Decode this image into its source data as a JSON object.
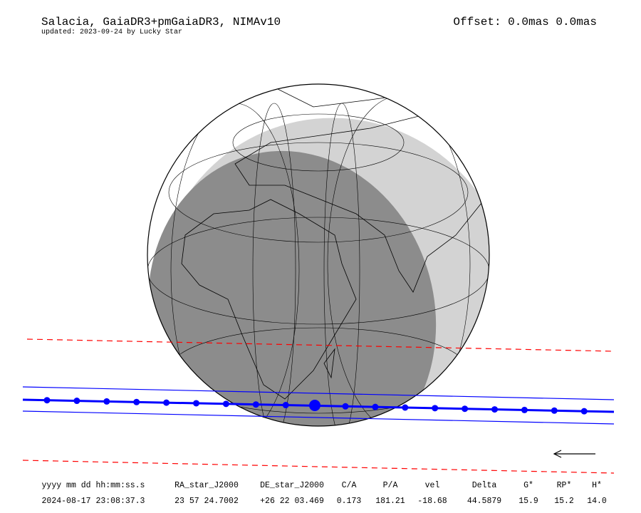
{
  "header": {
    "title": "Salacia, GaiaDR3+pmGaiaDR3, NIMAv10",
    "subtitle": "updated: 2023-09-24 by Lucky Star",
    "offset": "Offset: 0.0mas 0.0mas"
  },
  "table": {
    "columns": [
      "yyyy mm dd hh:mm:ss.s",
      "RA_star_J2000",
      "DE_star_J2000",
      "C/A",
      "P/A",
      "vel",
      "Delta",
      "G*",
      "RP*",
      "H*"
    ],
    "values": [
      "2024-08-17 23:08:37.3",
      "23 57 24.7002",
      "+26 22 03.469",
      "0.173",
      "181.21",
      "-18.68",
      "44.5879",
      "15.9",
      "15.2",
      "14.0"
    ]
  }
}
